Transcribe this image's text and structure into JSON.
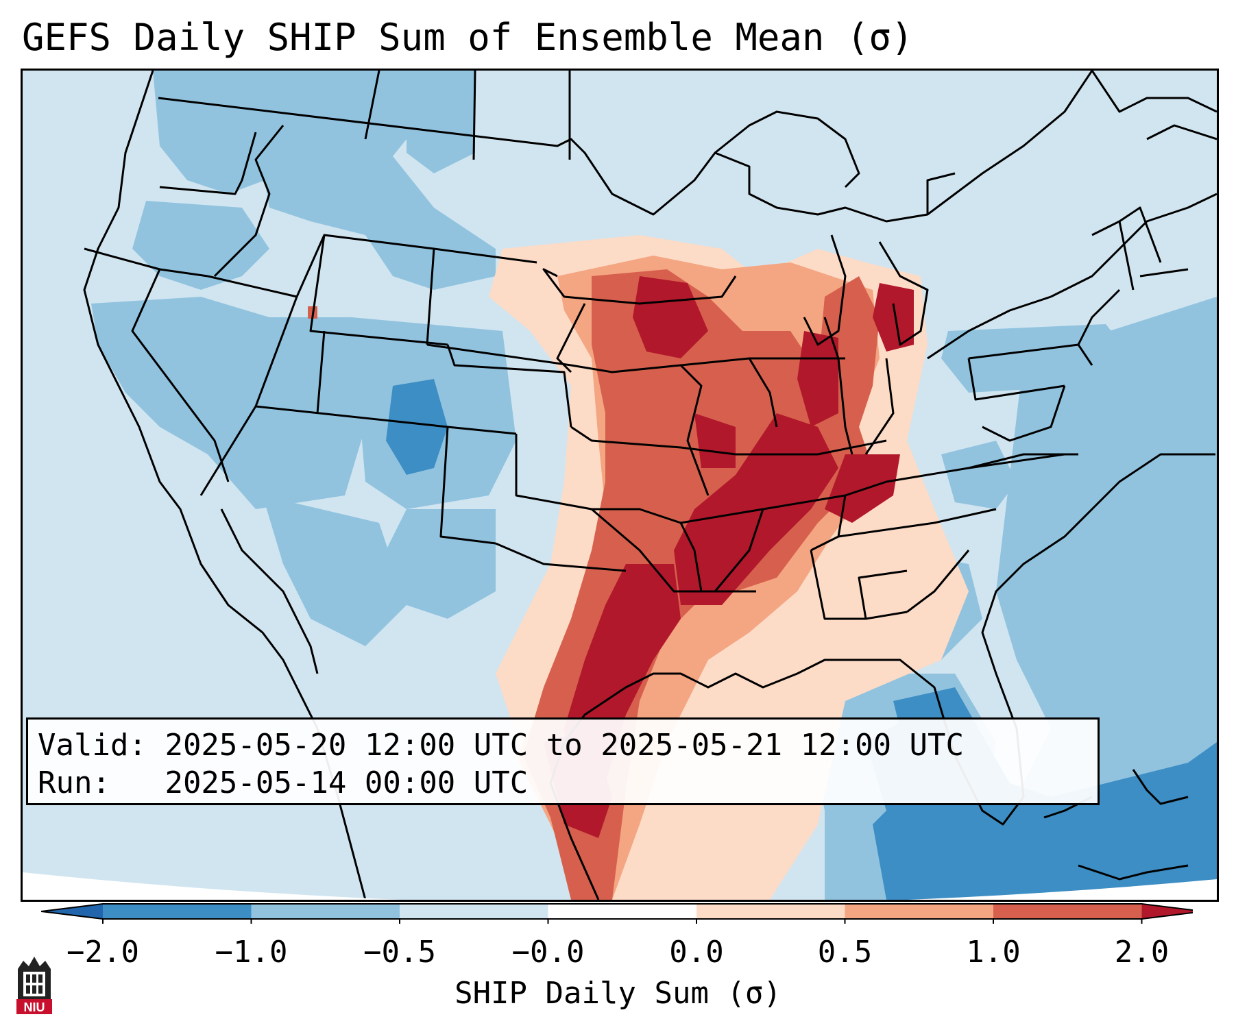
{
  "title": "GEFS Daily SHIP Sum of Ensemble Mean (σ)",
  "info": {
    "valid_label": "Valid:",
    "valid_value": "2025-05-20 12:00 UTC to 2025-05-21 12:00 UTC",
    "run_label": "Run:",
    "run_value": "2025-05-14 00:00 UTC"
  },
  "colorbar": {
    "label": "SHIP Daily Sum (σ)",
    "ticks": [
      "−2.0",
      "−1.0",
      "−0.5",
      "−0.0",
      "0.0",
      "0.5",
      "1.0",
      "2.0"
    ],
    "bins": [
      {
        "color": "#3d8ec4"
      },
      {
        "color": "#91c3df"
      },
      {
        "color": "#d1e5f0"
      },
      {
        "color": "#ffffff"
      },
      {
        "color": "#fcdbc7"
      },
      {
        "color": "#f4a582"
      },
      {
        "color": "#d6604d"
      }
    ],
    "under_color": "#2166ac",
    "over_color": "#b2182b"
  },
  "logo": {
    "text": "NIU",
    "color": "#c8102e"
  }
}
